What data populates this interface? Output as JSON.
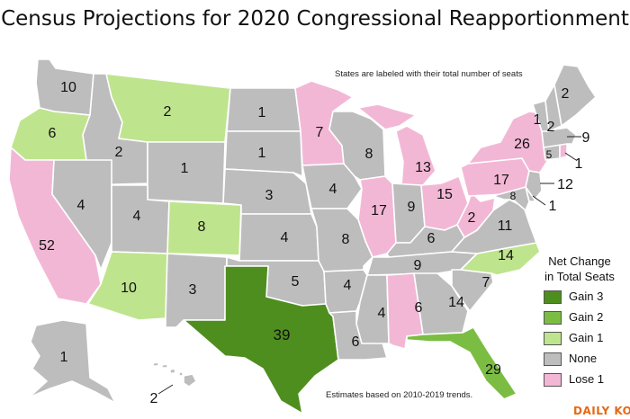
{
  "title": "Census Projections for 2020 Congressional Reapportionment",
  "subtitle": "States are labeled with their total number of seats",
  "footnote": "Estimates based on 2010-2019 trends.",
  "brand": "DAILY KOS",
  "legend": {
    "title_line1": "Net Change",
    "title_line2": "in Total Seats",
    "items": [
      {
        "label": "Gain 3",
        "color": "#4e8e1e"
      },
      {
        "label": "Gain 2",
        "color": "#7bbd42"
      },
      {
        "label": "Gain 1",
        "color": "#bfe48e"
      },
      {
        "label": "None",
        "color": "#bdbdbd"
      },
      {
        "label": "Lose 1",
        "color": "#f3b7d6"
      }
    ]
  },
  "states": [
    {
      "name": "WA",
      "seats": "10",
      "change": "None"
    },
    {
      "name": "OR",
      "seats": "6",
      "change": "Gain 1"
    },
    {
      "name": "CA",
      "seats": "52",
      "change": "Lose 1"
    },
    {
      "name": "ID",
      "seats": "2",
      "change": "None"
    },
    {
      "name": "NV",
      "seats": "4",
      "change": "None"
    },
    {
      "name": "MT",
      "seats": "2",
      "change": "Gain 1"
    },
    {
      "name": "WY",
      "seats": "1",
      "change": "None"
    },
    {
      "name": "UT",
      "seats": "4",
      "change": "None"
    },
    {
      "name": "AZ",
      "seats": "10",
      "change": "Gain 1"
    },
    {
      "name": "CO",
      "seats": "8",
      "change": "Gain 1"
    },
    {
      "name": "NM",
      "seats": "3",
      "change": "None"
    },
    {
      "name": "ND",
      "seats": "1",
      "change": "None"
    },
    {
      "name": "SD",
      "seats": "1",
      "change": "None"
    },
    {
      "name": "NE",
      "seats": "3",
      "change": "None"
    },
    {
      "name": "KS",
      "seats": "4",
      "change": "None"
    },
    {
      "name": "OK",
      "seats": "5",
      "change": "None"
    },
    {
      "name": "TX",
      "seats": "39",
      "change": "Gain 3"
    },
    {
      "name": "MN",
      "seats": "7",
      "change": "Lose 1"
    },
    {
      "name": "IA",
      "seats": "4",
      "change": "None"
    },
    {
      "name": "MO",
      "seats": "8",
      "change": "None"
    },
    {
      "name": "AR",
      "seats": "4",
      "change": "None"
    },
    {
      "name": "LA",
      "seats": "6",
      "change": "None"
    },
    {
      "name": "WI",
      "seats": "8",
      "change": "None"
    },
    {
      "name": "IL",
      "seats": "17",
      "change": "Lose 1"
    },
    {
      "name": "MI",
      "seats": "13",
      "change": "Lose 1"
    },
    {
      "name": "IN",
      "seats": "9",
      "change": "None"
    },
    {
      "name": "OH",
      "seats": "15",
      "change": "Lose 1"
    },
    {
      "name": "KY",
      "seats": "6",
      "change": "None"
    },
    {
      "name": "TN",
      "seats": "9",
      "change": "None"
    },
    {
      "name": "MS",
      "seats": "4",
      "change": "None"
    },
    {
      "name": "AL",
      "seats": "6",
      "change": "Lose 1"
    },
    {
      "name": "GA",
      "seats": "14",
      "change": "None"
    },
    {
      "name": "FL",
      "seats": "29",
      "change": "Gain 2"
    },
    {
      "name": "SC",
      "seats": "7",
      "change": "None"
    },
    {
      "name": "NC",
      "seats": "14",
      "change": "Gain 1"
    },
    {
      "name": "VA",
      "seats": "11",
      "change": "None"
    },
    {
      "name": "WV",
      "seats": "2",
      "change": "Lose 1"
    },
    {
      "name": "PA",
      "seats": "17",
      "change": "Lose 1"
    },
    {
      "name": "NY",
      "seats": "26",
      "change": "Lose 1"
    },
    {
      "name": "MD",
      "seats": "8",
      "change": "None"
    },
    {
      "name": "DE",
      "seats": "1",
      "change": "None"
    },
    {
      "name": "NJ",
      "seats": "12",
      "change": "None"
    },
    {
      "name": "CT",
      "seats": "5",
      "change": "None"
    },
    {
      "name": "RI",
      "seats": "1",
      "change": "Lose 1"
    },
    {
      "name": "MA",
      "seats": "9",
      "change": "None"
    },
    {
      "name": "VT",
      "seats": "1",
      "change": "None"
    },
    {
      "name": "NH",
      "seats": "2",
      "change": "None"
    },
    {
      "name": "ME",
      "seats": "2",
      "change": "None"
    },
    {
      "name": "AK",
      "seats": "1",
      "change": "None"
    },
    {
      "name": "HI",
      "seats": "2",
      "change": "None"
    }
  ]
}
